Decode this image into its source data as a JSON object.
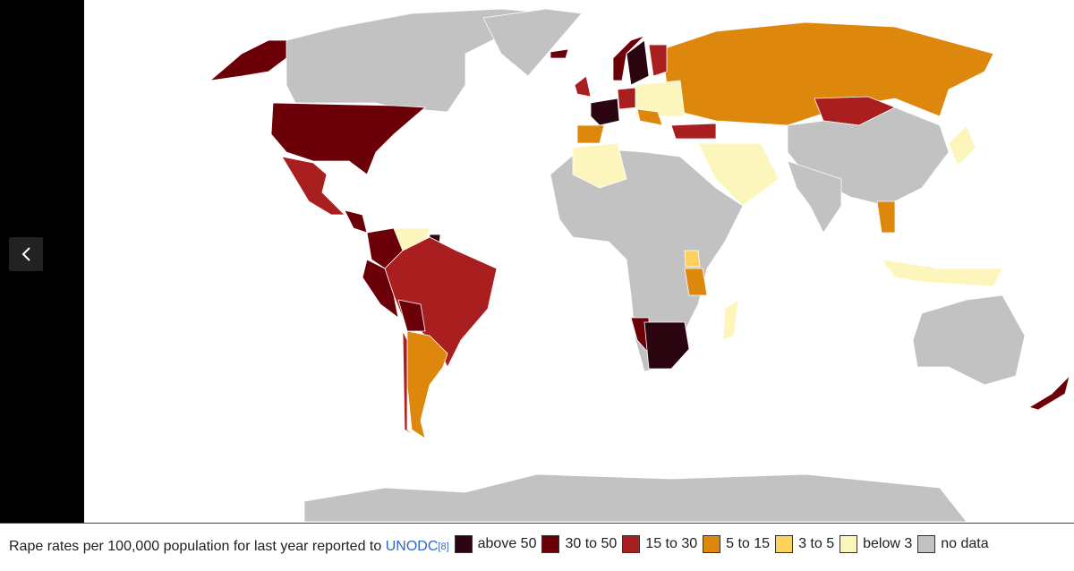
{
  "caption": {
    "text": "Rape rates per 100,000 population for last year reported to",
    "link": "UNODC",
    "ref": "[8]"
  },
  "legend": [
    {
      "label": "above 50",
      "color": "#2b0510"
    },
    {
      "label": "30 to 50",
      "color": "#6b0008"
    },
    {
      "label": "15 to 30",
      "color": "#a91e1e"
    },
    {
      "label": "5 to 15",
      "color": "#dd870d"
    },
    {
      "label": "3 to 5",
      "color": "#fcd15c"
    },
    {
      "label": "below 3",
      "color": "#fcf6bd"
    },
    {
      "label": "no data",
      "color": "#c2c2c2"
    }
  ]
}
